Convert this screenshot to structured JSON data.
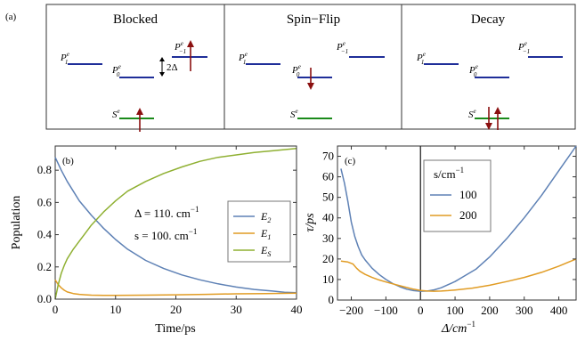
{
  "figure": {
    "panel_a": {
      "label": "(a)",
      "boxes": [
        {
          "title": "Blocked",
          "levels": {
            "p1": "P",
            "p0": "P",
            "pm1": "P",
            "s": "S"
          },
          "gap_label": "2Δ"
        },
        {
          "title": "Spin−Flip",
          "levels": {
            "p1": "P",
            "p0": "P",
            "pm1": "P",
            "s": "S"
          }
        },
        {
          "title": "Decay",
          "levels": {
            "p1": "P",
            "p0": "P",
            "pm1": "P",
            "s": "S"
          }
        }
      ],
      "sub_1": "1",
      "sub_0": "0",
      "sub_m1": "−1",
      "sup": "e",
      "colors": {
        "p_level": "#1f2e99",
        "s_level": "#1a8a1a",
        "arrow": "#8b1010"
      }
    }
  },
  "chart_data": [
    {
      "type": "line",
      "panel_label": "(b)",
      "xlabel": "Time/ps",
      "ylabel": "Population",
      "xlim": [
        0,
        40
      ],
      "ylim": [
        0,
        0.95
      ],
      "xticks": [
        0,
        10,
        20,
        30,
        40
      ],
      "yticks": [
        0.0,
        0.2,
        0.4,
        0.6,
        0.8
      ],
      "xtick_labels": [
        "0",
        "10",
        "20",
        "30",
        "40"
      ],
      "ytick_labels": [
        "0.0",
        "0.2",
        "0.4",
        "0.6",
        "0.8"
      ],
      "annotations": [
        "Δ = 110. cm",
        "s = 100. cm"
      ],
      "annotation_sup": "−1",
      "legend_placement": "center-right",
      "series": [
        {
          "name": "E",
          "sub": "2",
          "color": "#5e81b5",
          "x": [
            0,
            1,
            2,
            3,
            4,
            6,
            8,
            10,
            12,
            15,
            18,
            21,
            24,
            27,
            30,
            33,
            36,
            38,
            40
          ],
          "y": [
            0.88,
            0.8,
            0.73,
            0.67,
            0.61,
            0.52,
            0.44,
            0.37,
            0.31,
            0.24,
            0.19,
            0.15,
            0.12,
            0.095,
            0.075,
            0.06,
            0.05,
            0.043,
            0.04
          ]
        },
        {
          "name": "E",
          "sub": "1",
          "color": "#e19c24",
          "x": [
            0,
            0.5,
            1,
            1.5,
            2,
            3,
            4,
            5,
            6,
            8,
            10,
            15,
            20,
            25,
            30,
            35,
            40
          ],
          "y": [
            0.12,
            0.09,
            0.07,
            0.055,
            0.045,
            0.035,
            0.03,
            0.027,
            0.025,
            0.024,
            0.024,
            0.025,
            0.027,
            0.03,
            0.033,
            0.035,
            0.037
          ]
        },
        {
          "name": "E",
          "sub": "S",
          "color": "#8fb032",
          "x": [
            0,
            0.5,
            1,
            1.5,
            2,
            3,
            4,
            5,
            6,
            8,
            10,
            12,
            15,
            18,
            21,
            24,
            27,
            30,
            33,
            36,
            40
          ],
          "y": [
            0.0,
            0.09,
            0.16,
            0.21,
            0.25,
            0.31,
            0.36,
            0.41,
            0.46,
            0.54,
            0.61,
            0.67,
            0.73,
            0.78,
            0.82,
            0.855,
            0.88,
            0.895,
            0.91,
            0.92,
            0.935
          ]
        }
      ]
    },
    {
      "type": "line",
      "panel_label": "(c)",
      "xlabel": "Δ/cm",
      "xlabel_sup": "−1",
      "ylabel": "τ/ps",
      "xlim": [
        -240,
        450
      ],
      "ylim": [
        0,
        75
      ],
      "xticks": [
        -200,
        -100,
        0,
        100,
        200,
        300,
        400
      ],
      "yticks": [
        0,
        10,
        20,
        30,
        40,
        50,
        60,
        70
      ],
      "xtick_labels": [
        "−200",
        "−100",
        "0",
        "100",
        "200",
        "300",
        "400"
      ],
      "ytick_labels": [
        "0",
        "10",
        "20",
        "30",
        "40",
        "50",
        "60",
        "70"
      ],
      "vertical_line_x": 0,
      "legend_title": "s/cm",
      "legend_title_sup": "−1",
      "legend_placement": "upper-left",
      "series": [
        {
          "name": "100",
          "color": "#5e81b5",
          "x": [
            -230,
            -220,
            -210,
            -200,
            -190,
            -180,
            -170,
            -160,
            -140,
            -120,
            -100,
            -80,
            -60,
            -40,
            -20,
            0,
            20,
            40,
            60,
            80,
            100,
            120,
            140,
            160,
            200,
            250,
            300,
            350,
            400,
            450
          ],
          "y": [
            64,
            57,
            48,
            38,
            31,
            26,
            22,
            19.5,
            15.5,
            12.5,
            10,
            8,
            6.5,
            5.3,
            4.6,
            4.3,
            4.4,
            5,
            6,
            7.5,
            9,
            11,
            13,
            15,
            21,
            30,
            40,
            51,
            63,
            75
          ]
        },
        {
          "name": "200",
          "color": "#e19c24",
          "x": [
            -230,
            -210,
            -195,
            -185,
            -175,
            -160,
            -140,
            -120,
            -100,
            -80,
            -60,
            -40,
            -20,
            0,
            20,
            40,
            60,
            80,
            100,
            150,
            200,
            250,
            300,
            350,
            400,
            450
          ],
          "y": [
            19,
            18.5,
            17.5,
            15.5,
            14,
            12.5,
            11,
            9.8,
            8.8,
            7.9,
            7,
            6.1,
            5.3,
            4.7,
            4.4,
            4.3,
            4.4,
            4.6,
            4.9,
            5.8,
            7.2,
            9,
            11,
            13.5,
            16.5,
            20
          ]
        }
      ]
    }
  ]
}
